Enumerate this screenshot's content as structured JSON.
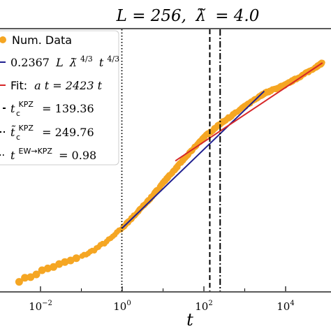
{
  "chart_data": {
    "type": "scatter",
    "title": "L = 256, λ̃ = 4.0",
    "xlabel": "t",
    "ylabel": "",
    "x_scale": "log",
    "y_scale": "log",
    "xlim": [
      0.002,
      80000
    ],
    "x_ticks": [
      {
        "value": 0.01,
        "base": "10",
        "exp": "−2"
      },
      {
        "value": 1,
        "base": "10",
        "exp": "0"
      },
      {
        "value": 100,
        "base": "10",
        "exp": "2"
      },
      {
        "value": 10000,
        "base": "10",
        "exp": "4"
      }
    ],
    "legend": {
      "placement": "top-left",
      "entries": [
        {
          "label": "Num. Data",
          "marker": "dot",
          "color": "#f5a623"
        },
        {
          "label": "0.2367 L λ̃^4/3 t^4/3",
          "marker": "line",
          "color": "#1f1f8f"
        },
        {
          "label": "Fit: a t = 2423 t",
          "marker": "line",
          "color": "#d62728"
        },
        {
          "label": "t_c^KPZ = 139.36",
          "marker": "dashed",
          "color": "#000000"
        },
        {
          "label": "t̃_c^KPZ = 249.76",
          "marker": "dashdot",
          "color": "#000000"
        },
        {
          "label": "t^EW→KPZ = 0.98",
          "marker": "dotted",
          "color": "#000000"
        }
      ]
    },
    "series": [
      {
        "name": "Num. Data",
        "kind": "scatter",
        "color": "#f5a623",
        "x": [
          0.003,
          0.006,
          0.012,
          0.025,
          0.05,
          0.1,
          0.2,
          0.5,
          0.98,
          2,
          5,
          10,
          30,
          100,
          139.36,
          249.76,
          1000,
          3000,
          10000,
          30000,
          80000
        ],
        "y": [
          0.0,
          0.02,
          0.05,
          0.07,
          0.09,
          0.11,
          0.14,
          0.19,
          0.24,
          0.3,
          0.38,
          0.45,
          0.55,
          0.66,
          0.68,
          0.72,
          0.8,
          0.86,
          0.9,
          0.95,
          1.0
        ]
      },
      {
        "name": "0.2367 L λ̃^4/3 t^4/3",
        "kind": "line",
        "color": "#1f1f8f",
        "x": [
          0.98,
          3000
        ],
        "y": [
          0.24,
          0.87
        ]
      },
      {
        "name": "Fit: a t = 2423 t",
        "kind": "line",
        "color": "#d62728",
        "x": [
          20,
          80000
        ],
        "y": [
          0.55,
          1.0
        ]
      }
    ],
    "vlines": [
      {
        "x": 139.36,
        "style": "dashed",
        "color": "#000000"
      },
      {
        "x": 249.76,
        "style": "dashdot",
        "color": "#000000"
      },
      {
        "x": 0.98,
        "style": "dotted",
        "color": "#000000"
      }
    ],
    "grid": false
  },
  "legend_text": {
    "num_data": "Num. Data",
    "powerlaw_coef": "0.2367",
    "powerlaw_L": "L",
    "powerlaw_lambda": "λ̃",
    "powerlaw_lambda_exp": "4/3",
    "powerlaw_t": "t",
    "powerlaw_t_exp": "4/3",
    "fit_prefix": "Fit:",
    "fit_formula": "a t = 2423 t",
    "tc_base": "t",
    "tc_sub": "c",
    "tc_sup": "KPZ",
    "tc_value": "= 139.36",
    "ttc_base": "t̃",
    "ttc_sub": "c",
    "ttc_sup": "KPZ",
    "ttc_value": "= 249.76",
    "tew_base": "t",
    "tew_sup": "EW→KPZ",
    "tew_value": "= 0.98"
  },
  "title_parts": {
    "left": "L = 256,",
    "lambda": "λ̃",
    "right": "= 4.0"
  }
}
